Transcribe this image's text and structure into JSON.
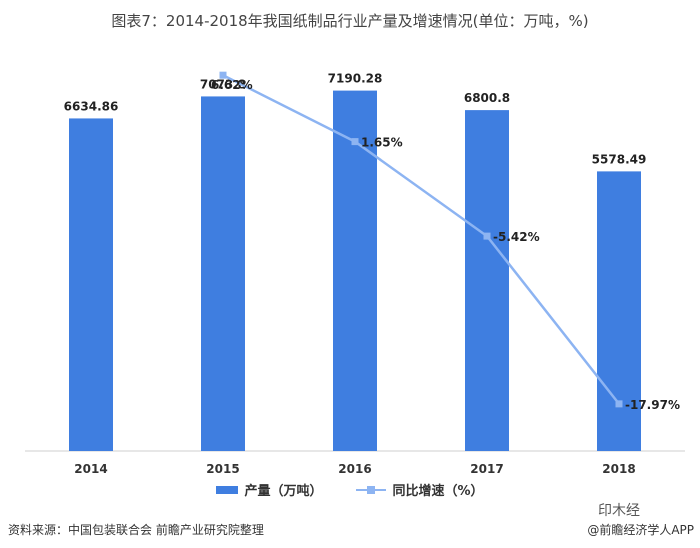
{
  "title": "图表7：2014-2018年我国纸制品行业产量及增速情况(单位：万吨，%)",
  "chart_data": {
    "type": "bar",
    "categories": [
      "2014",
      "2015",
      "2016",
      "2017",
      "2018"
    ],
    "series": [
      {
        "name": "产量（万吨）",
        "kind": "bar",
        "values": [
          6634.86,
          7073.8,
          7190.28,
          6800.8,
          5578.49
        ],
        "color": "#3f7ee0"
      },
      {
        "name": "同比增速（%）",
        "kind": "line",
        "values": [
          null,
          6.62,
          1.65,
          -5.42,
          -17.97
        ],
        "color": "#8db4f2"
      }
    ],
    "bar_labels": [
      "6634.86",
      "7073.8",
      "7190.28",
      "6800.8",
      "5578.49"
    ],
    "line_labels": [
      "",
      "6.62%",
      "1.65%",
      "-5.42%",
      "-17.97%"
    ],
    "ylim": [
      0,
      8000
    ],
    "y2lim": [
      -20,
      10
    ],
    "grid": false,
    "legend_position": "bottom"
  },
  "legend": {
    "bar_label": "产量（万吨）",
    "line_label": "同比增速（%）"
  },
  "footer": {
    "source": "资料来源：中国包装联合会 前瞻产业研究院整理",
    "app": "@前瞻经济学人APP"
  },
  "watermark": "印木经"
}
